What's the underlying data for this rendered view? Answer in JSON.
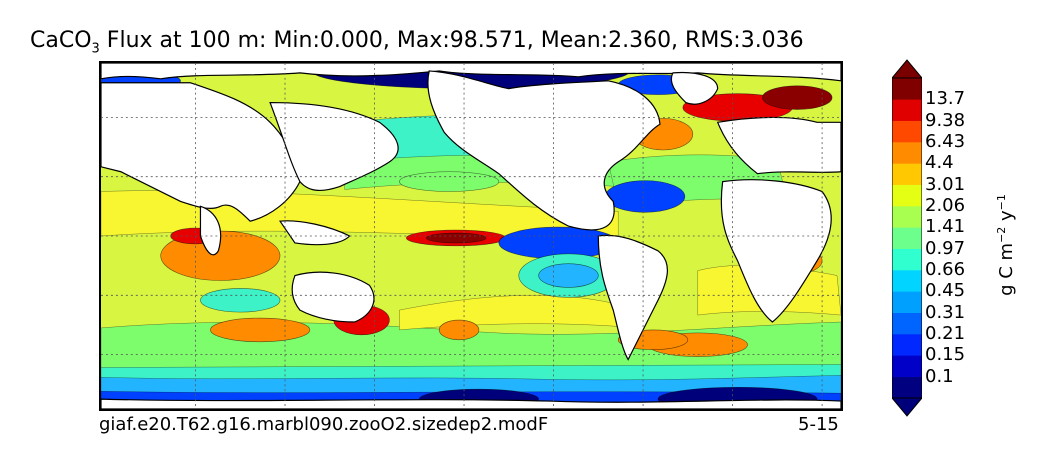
{
  "title": {
    "prefix": "CaCO",
    "subscript": "3",
    "rest": " Flux at 100 m: Min:0.000, Max:98.571, Mean:2.360, RMS:3.036"
  },
  "footer": {
    "run": "giaf.e20.T62.g16.marbl090.zooO2.sizedep2.modF",
    "period": "5-15"
  },
  "colorbar": {
    "units": {
      "g": "g C m",
      "exp1": "−2",
      "y": " y",
      "exp2": "−1"
    },
    "labels": [
      "13.7",
      "9.38",
      "6.43",
      "4.4",
      "3.01",
      "2.06",
      "1.41",
      "0.97",
      "0.66",
      "0.45",
      "0.31",
      "0.21",
      "0.15",
      "0.1"
    ],
    "colors": [
      "#000080",
      "#0000c8",
      "#0028ff",
      "#0064ff",
      "#00a0ff",
      "#00d4ff",
      "#30ffd0",
      "#6cff8c",
      "#a8ff50",
      "#e4ff14",
      "#ffc800",
      "#ff8c00",
      "#ff4800",
      "#e00000",
      "#800000"
    ],
    "extend_low": "#00007a",
    "extend_high": "#7a0000"
  },
  "map_colors": {
    "ocean_base": "#d8f542",
    "yellow": "#f8f531",
    "green": "#7dfc6c",
    "cyan": "#3cf2c6",
    "lightblue": "#22b4ff",
    "blue": "#0040ff",
    "navy": "#00007a",
    "orange": "#ff8c00",
    "red": "#e80000",
    "darkred": "#8a0000",
    "land": "#ffffff",
    "coast": "#000000",
    "grid": "#555555"
  }
}
